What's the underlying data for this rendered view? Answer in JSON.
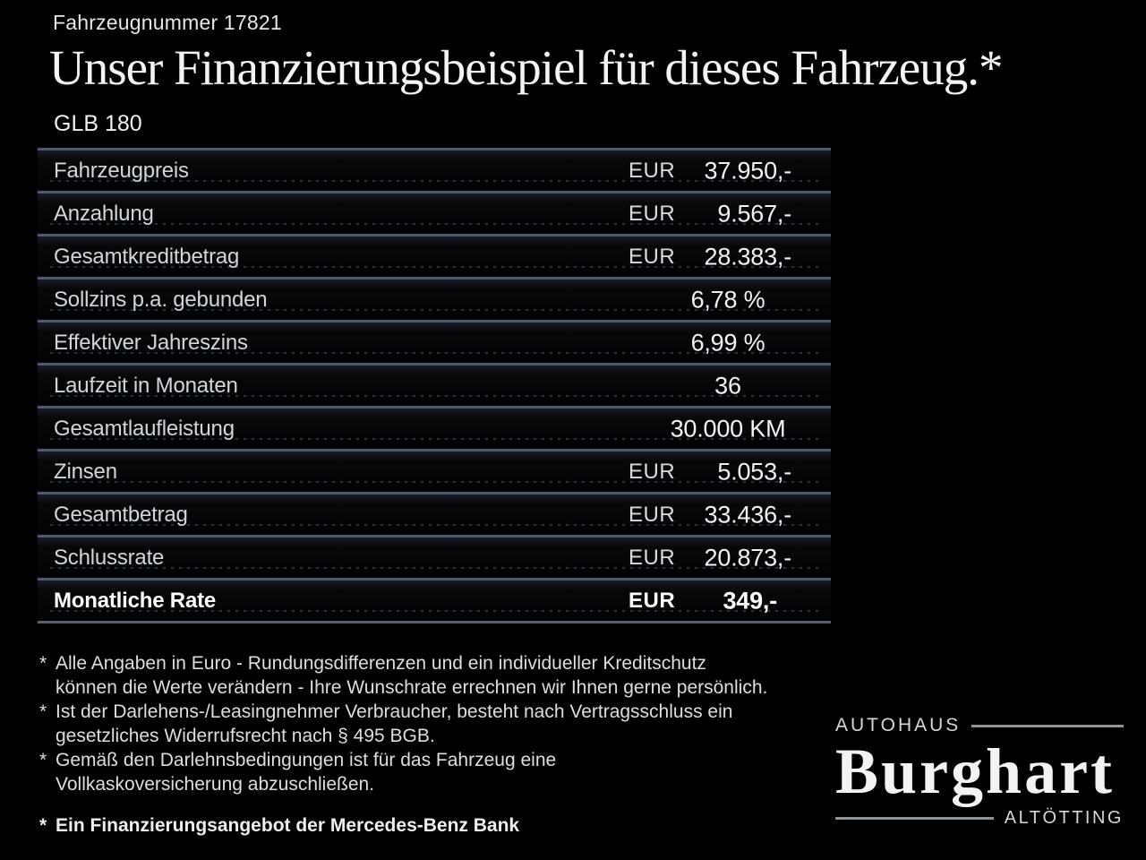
{
  "header": {
    "vehicle_number": "Fahrzeugnummer 17821",
    "title": "Unser Finanzierungsbeispiel für dieses Fahrzeug.*",
    "model": "GLB 180"
  },
  "table": {
    "rows": [
      {
        "label": "Fahrzeugpreis",
        "currency": "EUR",
        "value": "37.950,-"
      },
      {
        "label": "Anzahlung",
        "currency": "EUR",
        "value": "9.567,-"
      },
      {
        "label": "Gesamtkreditbetrag",
        "currency": "EUR",
        "value": "28.383,-"
      },
      {
        "label": "Sollzins p.a. gebunden",
        "currency": "",
        "value": "6,78 %"
      },
      {
        "label": "Effektiver Jahreszins",
        "currency": "",
        "value": "6,99 %"
      },
      {
        "label": "Laufzeit in Monaten",
        "currency": "",
        "value": "36"
      },
      {
        "label": "Gesamtlaufleistung",
        "currency": "",
        "value": "30.000 KM"
      },
      {
        "label": "Zinsen",
        "currency": "EUR",
        "value": "5.053,-"
      },
      {
        "label": "Gesamtbetrag",
        "currency": "EUR",
        "value": "33.436,-"
      },
      {
        "label": "Schlussrate",
        "currency": "EUR",
        "value": "20.873,-"
      },
      {
        "label": "Monatliche Rate",
        "currency": "EUR",
        "value": "349,-"
      }
    ]
  },
  "footnotes": [
    {
      "marker": "*",
      "text": "Alle Angaben in Euro - Rundungsdifferenzen und ein individueller Kreditschutz\nkönnen die Werte verändern - Ihre Wunschrate errechnen wir Ihnen gerne persönlich."
    },
    {
      "marker": "*",
      "text": "Ist der Darlehens-/Leasingnehmer Verbraucher, besteht nach Vertragsschluss ein\ngesetzliches Widerrufsrecht nach § 495 BGB."
    },
    {
      "marker": "*",
      "text": "Gemäß den Darlehnsbedingungen ist für das Fahrzeug eine\nVollkaskoversicherung abzuschließen."
    },
    {
      "marker": "*",
      "text": "Ein Finanzierungsangebot der Mercedes-Benz Bank"
    }
  ],
  "logo": {
    "autohaus": "AUTOHAUS",
    "name": "Burghart",
    "city": "ALTÖTTING"
  },
  "colors": {
    "background": "#000000",
    "row_separator": "#4d5a6e",
    "leader_dots": "#25344a",
    "text_primary": "#f1f3f5",
    "text_secondary": "#d2d5d9",
    "logo_rule": "#8f9499"
  }
}
